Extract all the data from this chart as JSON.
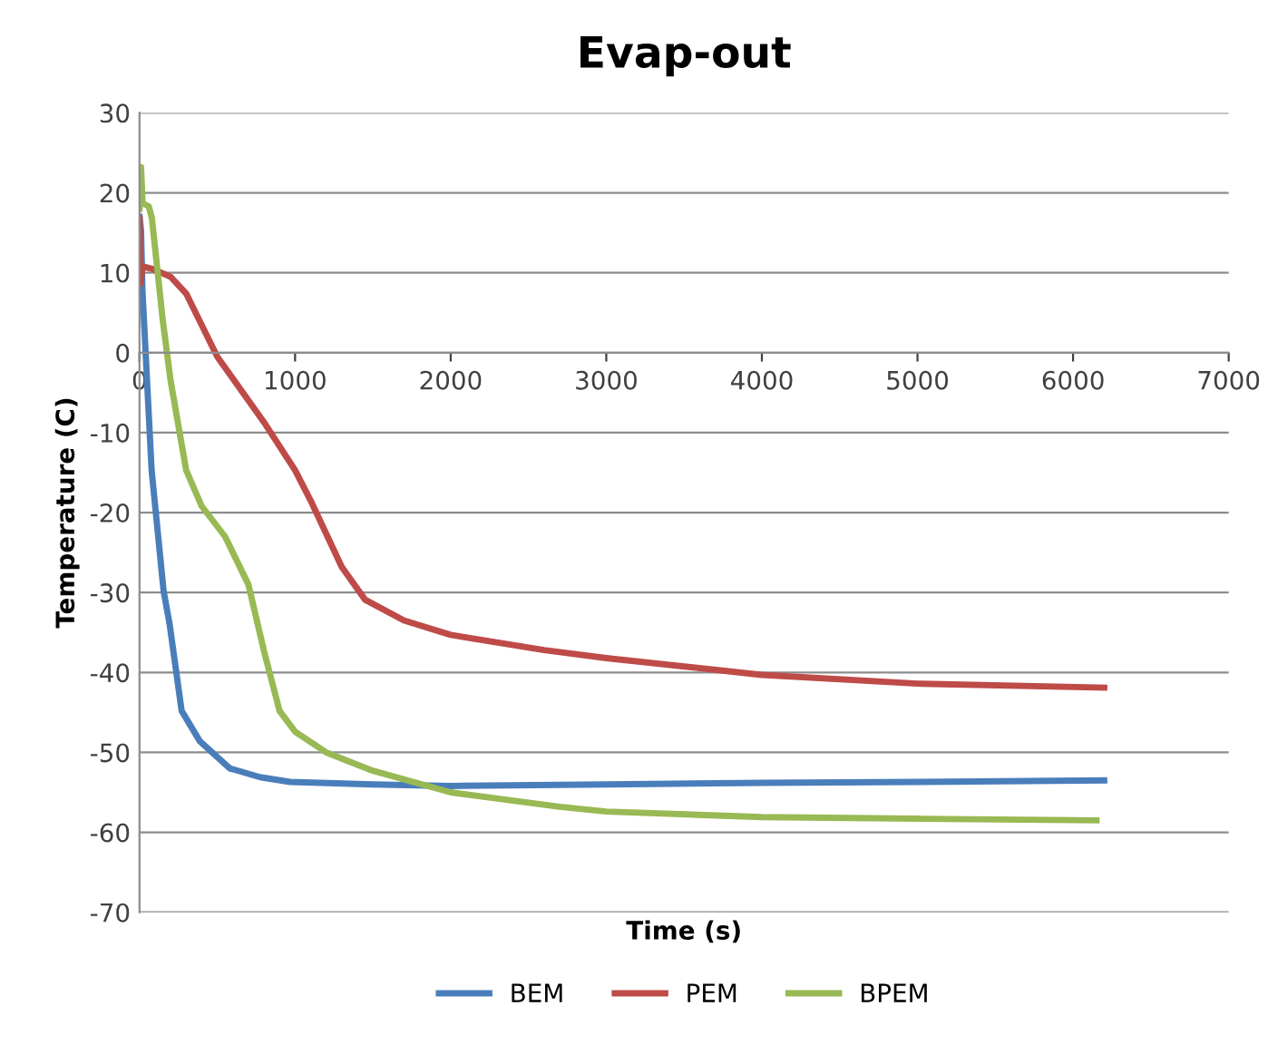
{
  "chart_data": {
    "type": "line",
    "title": "Evap-out",
    "xlabel": "Time (s)",
    "ylabel": "Temperature (C)",
    "xlim": [
      0,
      7000
    ],
    "xticks": [
      0,
      1000,
      2000,
      3000,
      4000,
      5000,
      6000,
      7000
    ],
    "ylim": [
      -70,
      30
    ],
    "yticks": [
      -70,
      -60,
      -50,
      -40,
      -30,
      -20,
      -10,
      0,
      10,
      20,
      30
    ],
    "grid": "y",
    "legend": "bottom",
    "marker": "none",
    "line_style": "solid",
    "series": [
      {
        "name": "BEM",
        "color": "#4a7ebb",
        "x": [
          0,
          10,
          19,
          78,
          155,
          194,
          271,
          388,
          581,
          775,
          969,
          1500,
          2000,
          3000,
          4000,
          5000,
          6200
        ],
        "values": [
          17,
          15.3,
          7.8,
          -14.7,
          -29.8,
          -34,
          -44.8,
          -48.6,
          -52,
          -53.1,
          -53.7,
          -54,
          -54.2,
          -54,
          -53.8,
          -53.7,
          -53.5
        ]
      },
      {
        "name": "PEM",
        "color": "#be4b48",
        "x": [
          0,
          5,
          20,
          80,
          200,
          300,
          500,
          800,
          1000,
          1100,
          1300,
          1450,
          1700,
          2000,
          2600,
          3000,
          4000,
          5000,
          6200
        ],
        "values": [
          16.8,
          8.6,
          10.8,
          10.5,
          9.5,
          7.4,
          -0.5,
          -8.7,
          -14.7,
          -18.5,
          -26.8,
          -30.9,
          -33.5,
          -35.3,
          -37.2,
          -38.2,
          -40.3,
          -41.4,
          -41.9
        ]
      },
      {
        "name": "BPEM",
        "color": "#98b954",
        "x": [
          0,
          10,
          20,
          60,
          80,
          150,
          200,
          300,
          400,
          550,
          700,
          800,
          900,
          1000,
          1200,
          1500,
          2000,
          2700,
          3000,
          4000,
          5000,
          6150
        ],
        "values": [
          18,
          23.2,
          18.7,
          18.3,
          16.8,
          4,
          -3.5,
          -14.7,
          -19.2,
          -23,
          -29,
          -37.3,
          -44.8,
          -47.4,
          -50,
          -52.3,
          -55,
          -56.8,
          -57.4,
          -58.1,
          -58.3,
          -58.5
        ]
      }
    ]
  }
}
